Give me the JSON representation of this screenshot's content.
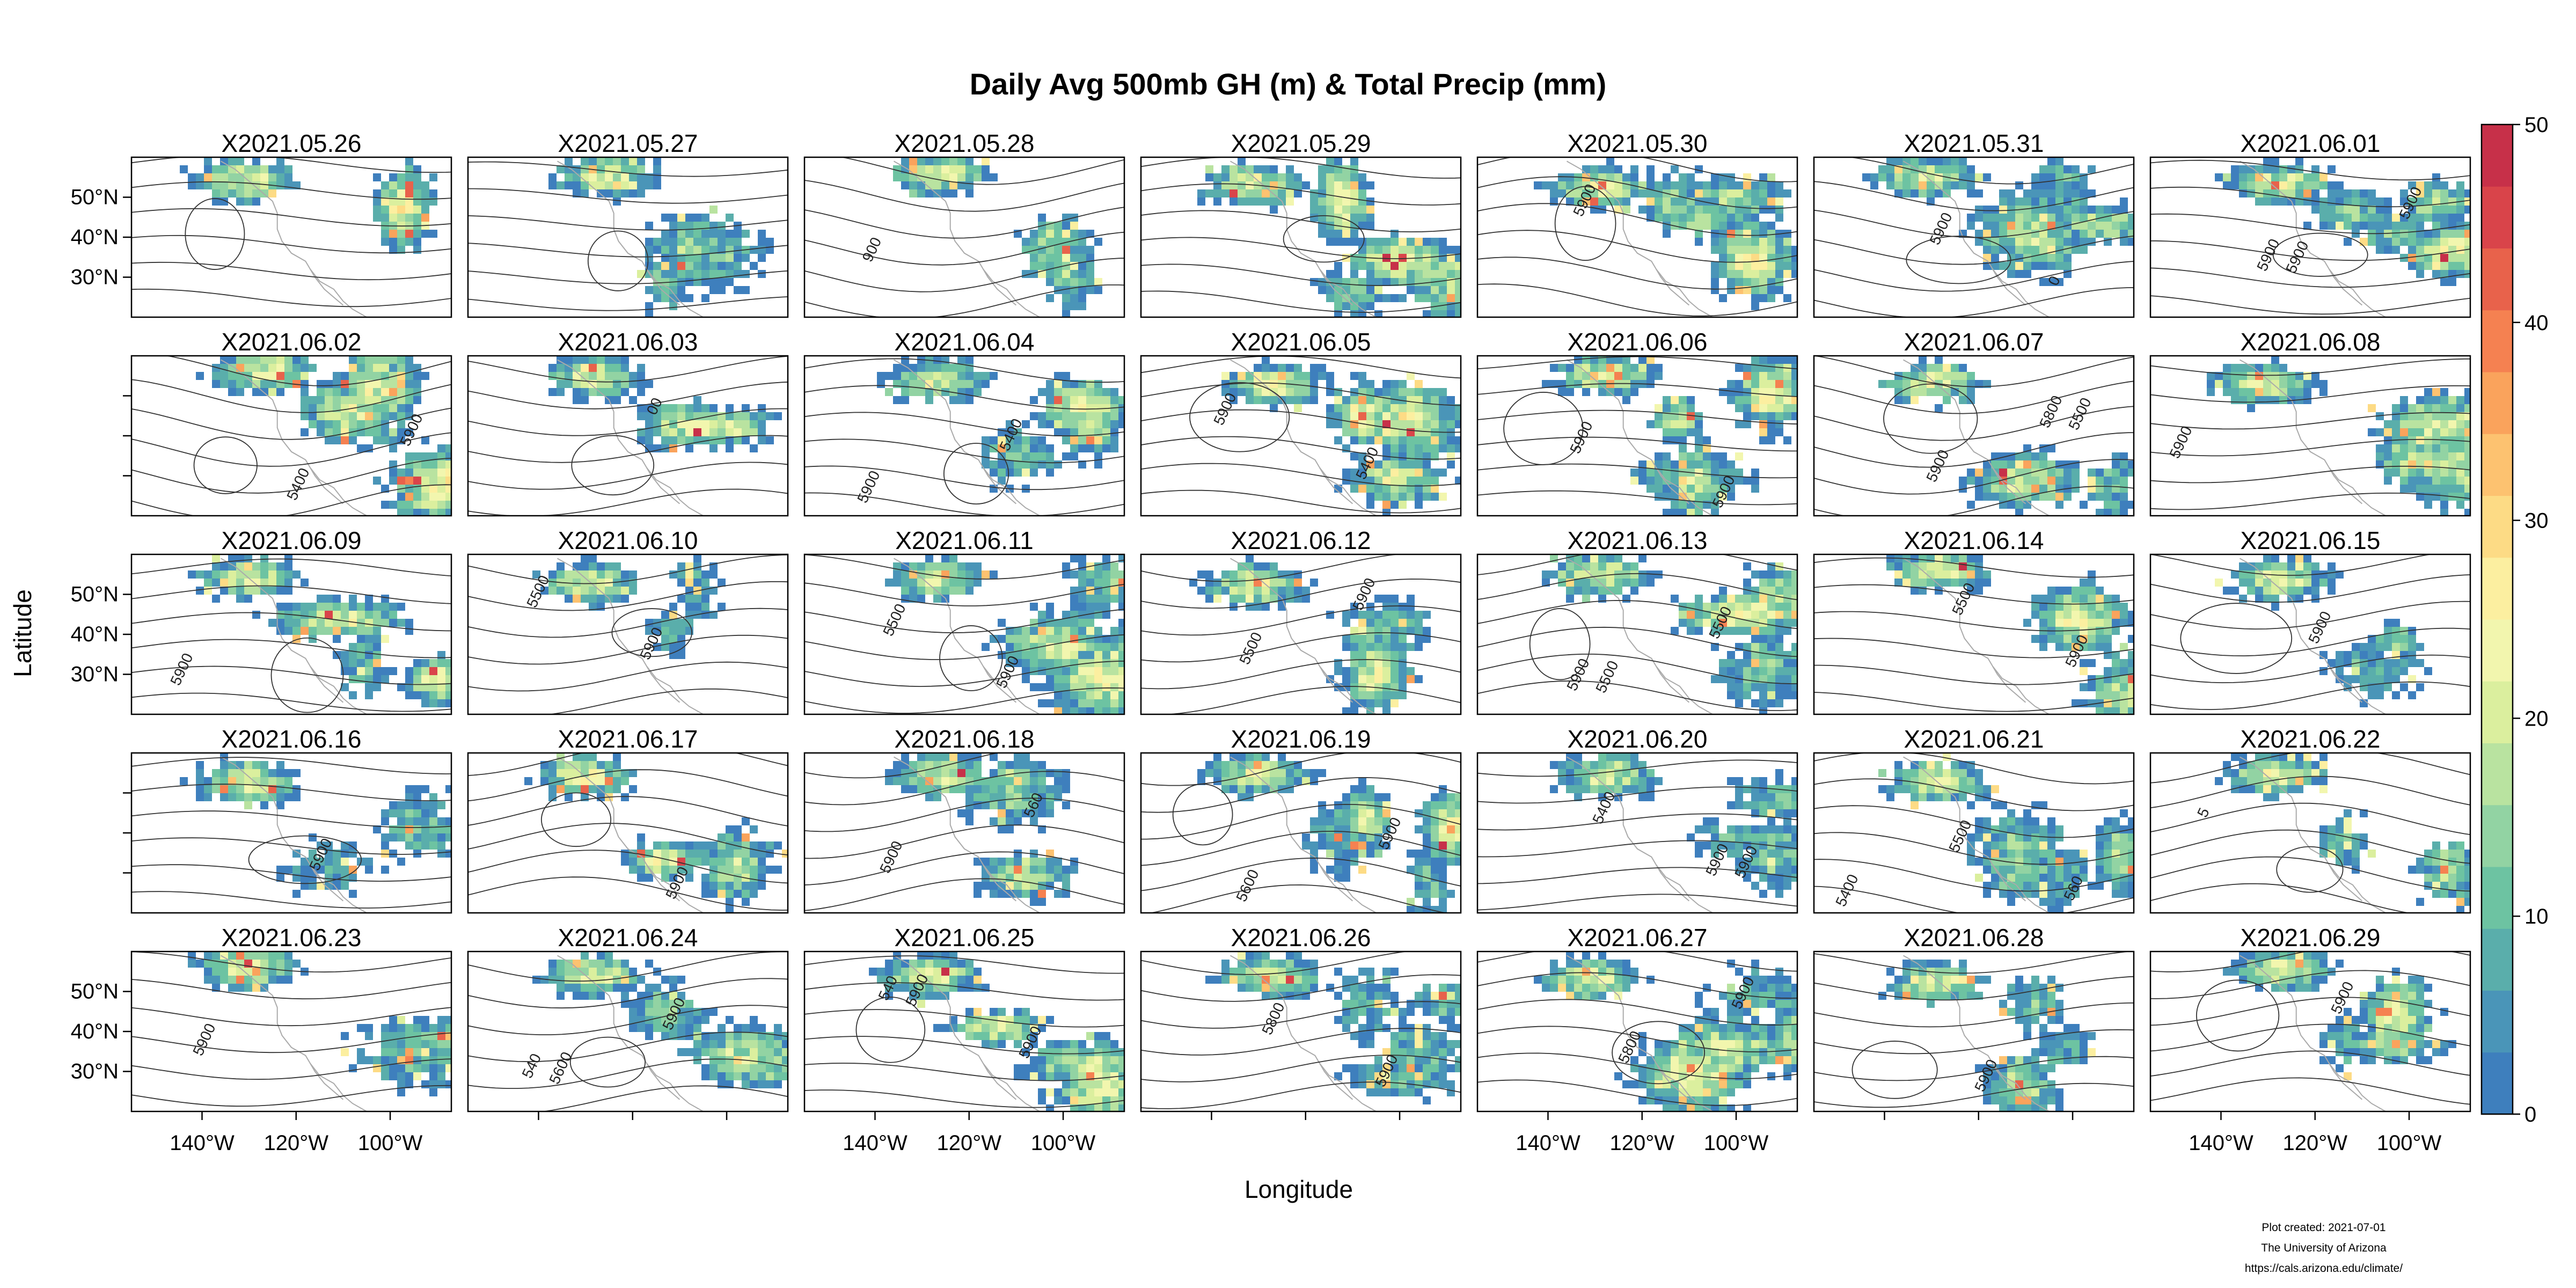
{
  "chart_data": {
    "type": "heatmap",
    "title": "Daily Avg 500mb GH (m) & Total Precip (mm)",
    "xlabel": "Longitude",
    "ylabel": "Latitude",
    "panels": [
      "X2021.05.26",
      "X2021.05.27",
      "X2021.05.28",
      "X2021.05.29",
      "X2021.05.30",
      "X2021.05.31",
      "X2021.06.01",
      "X2021.06.02",
      "X2021.06.03",
      "X2021.06.04",
      "X2021.06.05",
      "X2021.06.06",
      "X2021.06.07",
      "X2021.06.08",
      "X2021.06.09",
      "X2021.06.10",
      "X2021.06.11",
      "X2021.06.12",
      "X2021.06.13",
      "X2021.06.14",
      "X2021.06.15",
      "X2021.06.16",
      "X2021.06.17",
      "X2021.06.18",
      "X2021.06.19",
      "X2021.06.20",
      "X2021.06.21",
      "X2021.06.22",
      "X2021.06.23",
      "X2021.06.24",
      "X2021.06.25",
      "X2021.06.26",
      "X2021.06.27",
      "X2021.06.28",
      "X2021.06.29"
    ],
    "x_ticks": [
      "140°W",
      "120°W",
      "100°W"
    ],
    "x_tick_values": [
      -140,
      -120,
      -100
    ],
    "y_ticks": [
      "50°N",
      "40°N",
      "30°N"
    ],
    "y_tick_values": [
      50,
      40,
      30
    ],
    "xlim": [
      -155,
      -87
    ],
    "ylim": [
      20,
      60
    ],
    "colorbar": {
      "ticks": [
        "0",
        "10",
        "20",
        "30",
        "40",
        "50"
      ],
      "range": [
        0,
        50
      ],
      "colors": [
        "#3E7FBD",
        "#4A95B8",
        "#5AAEAB",
        "#6DC3A2",
        "#92D3A3",
        "#B9E3A0",
        "#DBEF9E",
        "#F2F6AE",
        "#FCEFA0",
        "#FDDB85",
        "#FDC270",
        "#FAA35C",
        "#F58151",
        "#E8624B",
        "#D9444A",
        "#C73049"
      ]
    },
    "contour_labels": [
      {
        "panel": 2,
        "text": "900"
      },
      {
        "panel": 4,
        "text": "5900"
      },
      {
        "panel": 5,
        "text": "5900"
      },
      {
        "panel": 5,
        "text": "0"
      },
      {
        "panel": 6,
        "text": "5900"
      },
      {
        "panel": 6,
        "text": "5900"
      },
      {
        "panel": 6,
        "text": "5900"
      },
      {
        "panel": 7,
        "text": "5400"
      },
      {
        "panel": 7,
        "text": "5900"
      },
      {
        "panel": 8,
        "text": "00"
      },
      {
        "panel": 9,
        "text": "5400"
      },
      {
        "panel": 9,
        "text": "5900"
      },
      {
        "panel": 10,
        "text": "5400"
      },
      {
        "panel": 10,
        "text": "5900"
      },
      {
        "panel": 11,
        "text": "5900"
      },
      {
        "panel": 11,
        "text": "5900"
      },
      {
        "panel": 12,
        "text": "5500"
      },
      {
        "panel": 12,
        "text": "5900"
      },
      {
        "panel": 12,
        "text": "5800"
      },
      {
        "panel": 13,
        "text": "5900"
      },
      {
        "panel": 14,
        "text": "5900"
      },
      {
        "panel": 15,
        "text": "5500"
      },
      {
        "panel": 15,
        "text": "5900"
      },
      {
        "panel": 16,
        "text": "5500"
      },
      {
        "panel": 16,
        "text": "5900"
      },
      {
        "panel": 17,
        "text": "5500"
      },
      {
        "panel": 17,
        "text": "5900"
      },
      {
        "panel": 18,
        "text": "5500"
      },
      {
        "panel": 18,
        "text": "5500"
      },
      {
        "panel": 18,
        "text": "5900"
      },
      {
        "panel": 19,
        "text": "5500"
      },
      {
        "panel": 19,
        "text": "5900"
      },
      {
        "panel": 20,
        "text": "5900"
      },
      {
        "panel": 21,
        "text": "5900"
      },
      {
        "panel": 22,
        "text": "5900"
      },
      {
        "panel": 23,
        "text": "560"
      },
      {
        "panel": 23,
        "text": "5900"
      },
      {
        "panel": 24,
        "text": "5900"
      },
      {
        "panel": 24,
        "text": "5600"
      },
      {
        "panel": 25,
        "text": "5900"
      },
      {
        "panel": 25,
        "text": "5400"
      },
      {
        "panel": 25,
        "text": "5900"
      },
      {
        "panel": 26,
        "text": "5400"
      },
      {
        "panel": 26,
        "text": "5500"
      },
      {
        "panel": 26,
        "text": "560"
      },
      {
        "panel": 27,
        "text": "5"
      },
      {
        "panel": 28,
        "text": "5900"
      },
      {
        "panel": 29,
        "text": "5600"
      },
      {
        "panel": 29,
        "text": "5900"
      },
      {
        "panel": 29,
        "text": "540"
      },
      {
        "panel": 30,
        "text": "5900"
      },
      {
        "panel": 30,
        "text": "5900"
      },
      {
        "panel": 30,
        "text": "540"
      },
      {
        "panel": 31,
        "text": "5800"
      },
      {
        "panel": 31,
        "text": "5900"
      },
      {
        "panel": 32,
        "text": "5800"
      },
      {
        "panel": 32,
        "text": "5900"
      },
      {
        "panel": 33,
        "text": "5900"
      },
      {
        "panel": 34,
        "text": "5900"
      }
    ]
  },
  "footer": {
    "line1": "Plot created: 2021-07-01",
    "line2": "The University of Arizona",
    "line3": "https://cals.arizona.edu/climate/"
  }
}
